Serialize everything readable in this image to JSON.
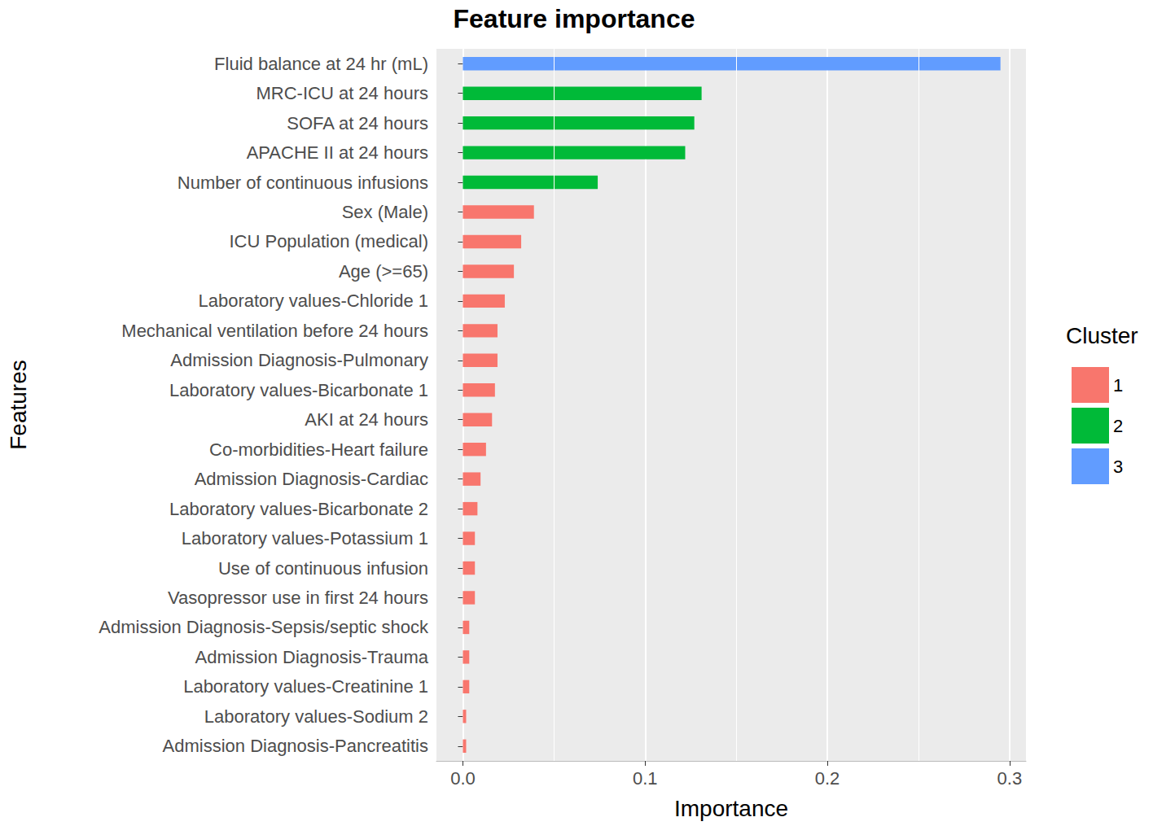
{
  "chart_data": {
    "type": "bar",
    "title": "Feature importance",
    "x_label": "Importance",
    "y_label": "Features",
    "legend_title": "Cluster",
    "orientation": "horizontal",
    "grid": true,
    "legend": "right",
    "categories": [
      "Fluid balance at 24 hr (mL)",
      "MRC-ICU at 24 hours",
      "SOFA at 24 hours",
      "APACHE II at 24 hours",
      "Number of continuous infusions",
      "Sex (Male)",
      "ICU Population (medical)",
      "Age (>=65)",
      "Laboratory values-Chloride 1",
      "Mechanical ventilation before 24 hours",
      "Admission Diagnosis-Pulmonary",
      "Laboratory values-Bicarbonate 1",
      "AKI at 24 hours",
      "Co-morbidities-Heart failure",
      "Admission Diagnosis-Cardiac",
      "Laboratory values-Bicarbonate 2",
      "Laboratory values-Potassium 1",
      "Use of continuous infusion",
      "Vasopressor use in first 24 hours",
      "Admission Diagnosis-Sepsis/septic shock",
      "Admission Diagnosis-Trauma",
      "Laboratory values-Creatinine 1",
      "Laboratory values-Sodium 2",
      "Admission Diagnosis-Pancreatitis"
    ],
    "series": [
      {
        "name": "1",
        "color": "#F8766D",
        "values": [
          null,
          null,
          null,
          null,
          null,
          0.039,
          0.032,
          0.028,
          0.023,
          0.019,
          0.019,
          0.0176,
          0.016,
          0.0127,
          0.0097,
          0.008,
          0.0066,
          0.0066,
          0.0066,
          0.0035,
          0.0035,
          0.0035,
          0.0018,
          0.0018
        ]
      },
      {
        "name": "2",
        "color": "#00BA38",
        "values": [
          null,
          0.131,
          0.127,
          0.122,
          0.074,
          null,
          null,
          null,
          null,
          null,
          null,
          null,
          null,
          null,
          null,
          null,
          null,
          null,
          null,
          null,
          null,
          null,
          null,
          null
        ]
      },
      {
        "name": "3",
        "color": "#619CFF",
        "values": [
          0.295,
          null,
          null,
          null,
          null,
          null,
          null,
          null,
          null,
          null,
          null,
          null,
          null,
          null,
          null,
          null,
          null,
          null,
          null,
          null,
          null,
          null,
          null,
          null
        ]
      }
    ],
    "xlim": [
      -0.0145,
      0.309
    ],
    "xticks": [
      {
        "value": 0,
        "label": "0.0"
      },
      0.1,
      0.2,
      0.3
    ]
  }
}
